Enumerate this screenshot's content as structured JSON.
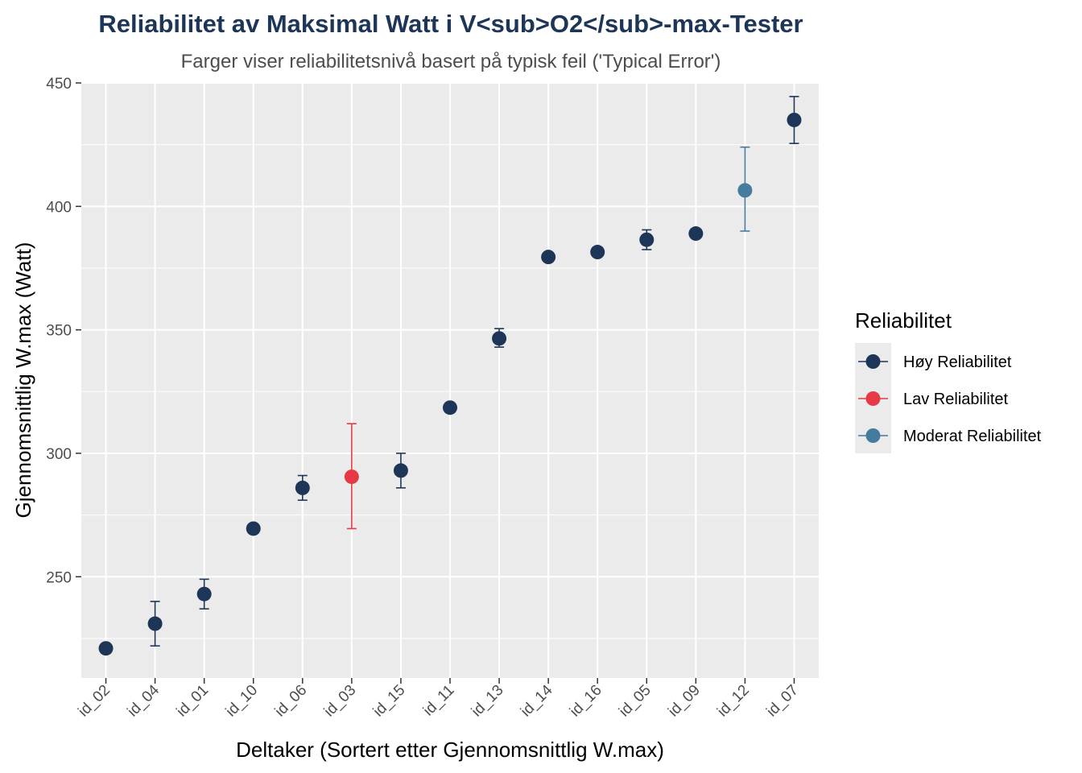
{
  "chart_data": {
    "type": "scatter",
    "title": "Reliabilitet av Maksimal Watt i V<sub>O2</sub>-max-Tester",
    "subtitle": "Farger viser reliabilitetsnivå basert på typisk feil ('Typical Error')",
    "xlabel": "Deltaker (Sortert etter Gjennomsnittlig W.max)",
    "ylabel": "Gjennomsnittlig W.max (Watt)",
    "ylim": [
      209,
      450
    ],
    "yticks": [
      "250",
      "300",
      "350",
      "400",
      "450"
    ],
    "grid": true,
    "legend": {
      "title": "Reliabilitet",
      "position": "right",
      "entries": [
        {
          "label": "Høy Reliabilitet",
          "color": "#1d3557"
        },
        {
          "label": "Lav Reliabilitet",
          "color": "#e63946"
        },
        {
          "label": "Moderat Reliabilitet",
          "color": "#457b9d"
        }
      ]
    },
    "categories": [
      "id_02",
      "id_04",
      "id_01",
      "id_10",
      "id_06",
      "id_03",
      "id_15",
      "id_11",
      "id_13",
      "id_14",
      "id_16",
      "id_05",
      "id_09",
      "id_12",
      "id_07"
    ],
    "points": [
      {
        "x": "id_02",
        "y": 221,
        "low": 221,
        "high": 221,
        "group": 0
      },
      {
        "x": "id_04",
        "y": 231,
        "low": 222,
        "high": 240,
        "group": 0
      },
      {
        "x": "id_01",
        "y": 243,
        "low": 237,
        "high": 249,
        "group": 0
      },
      {
        "x": "id_10",
        "y": 269.5,
        "low": 269.5,
        "high": 269.5,
        "group": 0
      },
      {
        "x": "id_06",
        "y": 286,
        "low": 281,
        "high": 291,
        "group": 0
      },
      {
        "x": "id_03",
        "y": 290.5,
        "low": 269.5,
        "high": 312,
        "group": 1
      },
      {
        "x": "id_15",
        "y": 293,
        "low": 286,
        "high": 300,
        "group": 0
      },
      {
        "x": "id_11",
        "y": 318.5,
        "low": 318.5,
        "high": 318.5,
        "group": 0
      },
      {
        "x": "id_13",
        "y": 346.5,
        "low": 343,
        "high": 350.5,
        "group": 0
      },
      {
        "x": "id_14",
        "y": 379.5,
        "low": 378.5,
        "high": 380.5,
        "group": 0
      },
      {
        "x": "id_16",
        "y": 381.5,
        "low": 381.5,
        "high": 381.5,
        "group": 0
      },
      {
        "x": "id_05",
        "y": 386.5,
        "low": 382.5,
        "high": 390.5,
        "group": 0
      },
      {
        "x": "id_09",
        "y": 389,
        "low": 389,
        "high": 389,
        "group": 0
      },
      {
        "x": "id_12",
        "y": 406.5,
        "low": 390,
        "high": 424,
        "group": 2
      },
      {
        "x": "id_07",
        "y": 435,
        "low": 425.5,
        "high": 444.5,
        "group": 0
      }
    ]
  }
}
